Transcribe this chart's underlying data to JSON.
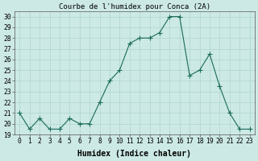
{
  "x": [
    0,
    1,
    2,
    3,
    4,
    5,
    6,
    7,
    8,
    9,
    10,
    11,
    12,
    13,
    14,
    15,
    16,
    17,
    18,
    19,
    20,
    21,
    22,
    23
  ],
  "y": [
    21,
    19.5,
    20.5,
    19.5,
    19.5,
    20.5,
    20,
    20,
    22,
    24,
    25,
    27.5,
    28,
    28,
    28.5,
    30,
    30,
    24.5,
    25,
    26.5,
    23.5,
    21,
    19.5,
    19.5
  ],
  "line_color": "#1a6b5a",
  "marker": "o",
  "marker_size": 2.5,
  "bg_color": "#cce9e5",
  "grid_color": "#aed4ce",
  "title": "Courbe de l'humidex pour Conca (2A)",
  "xlabel": "Humidex (Indice chaleur)",
  "xlim": [
    -0.5,
    23.5
  ],
  "ylim": [
    19,
    30.5
  ],
  "yticks": [
    19,
    20,
    21,
    22,
    23,
    24,
    25,
    26,
    27,
    28,
    29,
    30
  ],
  "xticks": [
    0,
    1,
    2,
    3,
    4,
    5,
    6,
    7,
    8,
    9,
    10,
    11,
    12,
    13,
    14,
    15,
    16,
    17,
    18,
    19,
    20,
    21,
    22,
    23
  ],
  "title_fontsize": 6.5,
  "label_fontsize": 7.0,
  "tick_fontsize": 5.8
}
